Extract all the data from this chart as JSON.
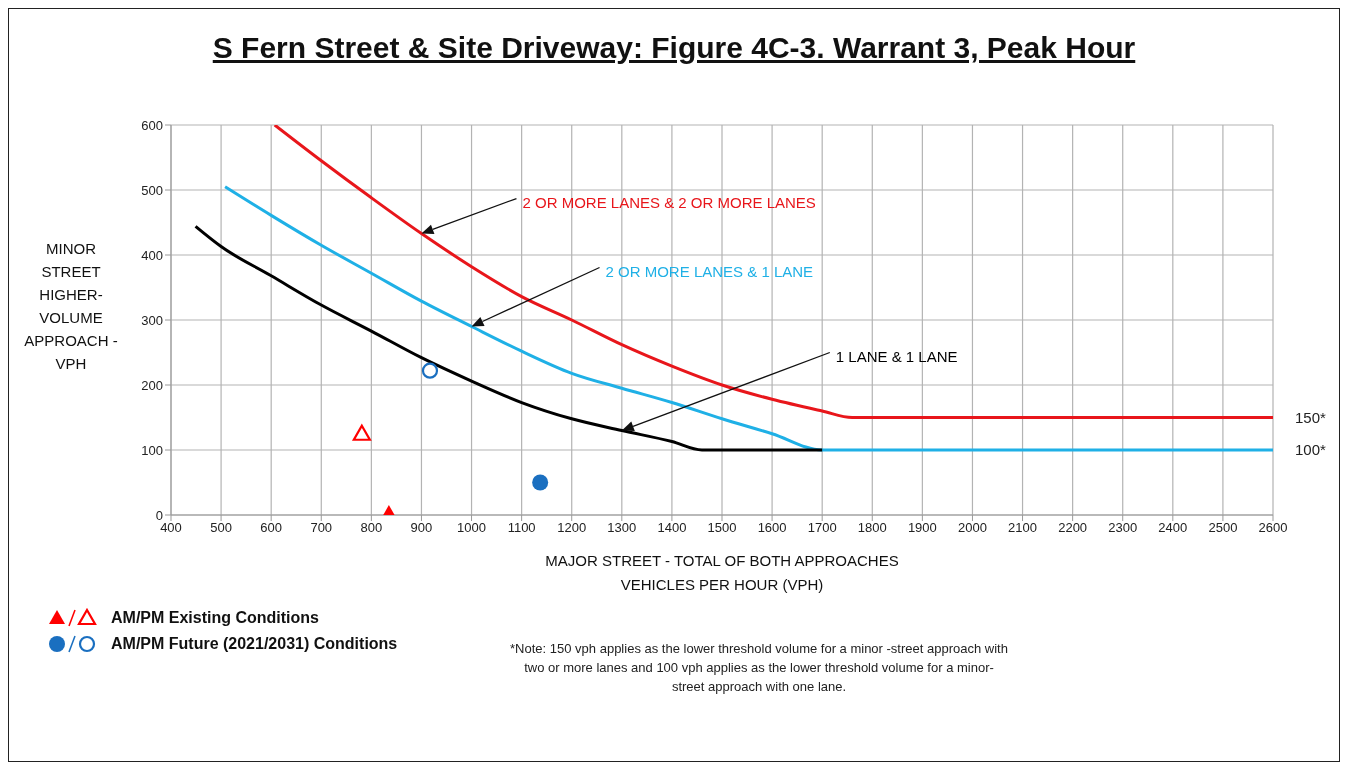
{
  "chart_data": {
    "type": "line",
    "title": "S Fern Street & Site Driveway: Figure 4C-3. Warrant 3, Peak Hour",
    "xlabel": "MAJOR STREET - TOTAL OF BOTH APPROACHES\nVEHICLES PER HOUR (VPH)",
    "ylabel": "MINOR\nSTREET\nHIGHER-\nVOLUME\nAPPROACH -\nVPH",
    "series": [
      {
        "name": "2 OR MORE LANES & 2 OR MORE LANES",
        "color": "#e8161b",
        "x": [
          607,
          700,
          800,
          900,
          1000,
          1100,
          1200,
          1300,
          1400,
          1500,
          1600,
          1700,
          1760,
          2600
        ],
        "values": [
          600,
          545,
          488,
          433,
          382,
          336,
          300,
          262,
          229,
          200,
          178,
          160,
          150,
          150
        ]
      },
      {
        "name": "2 OR MORE LANES & 1 LANE",
        "color": "#1fb0e6",
        "x": [
          508,
          600,
          700,
          800,
          900,
          1000,
          1100,
          1200,
          1300,
          1400,
          1500,
          1600,
          1700,
          2600
        ],
        "values": [
          505,
          461,
          415,
          372,
          329,
          290,
          252,
          218,
          195,
          173,
          148,
          125,
          100,
          100
        ]
      },
      {
        "name": "1 LANE & 1 LANE",
        "color": "#000000",
        "x": [
          449,
          500,
          600,
          700,
          800,
          900,
          1000,
          1100,
          1200,
          1300,
          1400,
          1460,
          1700
        ],
        "values": [
          444,
          413,
          368,
          323,
          283,
          242,
          206,
          173,
          148,
          130,
          113,
          100,
          100
        ]
      },
      {
        "name": "AM/PM Existing Conditions",
        "type": "scatter",
        "marker": "triangle",
        "color": "#ff0000",
        "x": [
          835,
          781
        ],
        "values": [
          3,
          125
        ]
      },
      {
        "name": "AM/PM Future (2021/2031) Conditions",
        "type": "scatter",
        "marker": "circle",
        "color": "#1a6fc0",
        "x": [
          1137,
          917
        ],
        "values": [
          50,
          222
        ]
      }
    ],
    "xlim": [
      400,
      2600
    ],
    "xticks": [
      400,
      500,
      600,
      700,
      800,
      900,
      1000,
      1100,
      1200,
      1300,
      1400,
      1500,
      1600,
      1700,
      1800,
      1900,
      2000,
      2100,
      2200,
      2300,
      2400,
      2500,
      2600
    ],
    "ylim": [
      0,
      600
    ],
    "yticks": [
      0,
      100,
      200,
      300,
      400,
      500,
      600
    ],
    "grid": true,
    "legend": "bottom left",
    "annotations": [
      {
        "text": "150*",
        "x": 2600,
        "y": 150
      },
      {
        "text": "100*",
        "x": 2600,
        "y": 100
      },
      "*Note: 150 vph applies as the lower threshold volume for a minor -street approach with two or more lanes and 100 vph applies as the lower threshold volume for a minor-street approach with one lane."
    ]
  }
}
